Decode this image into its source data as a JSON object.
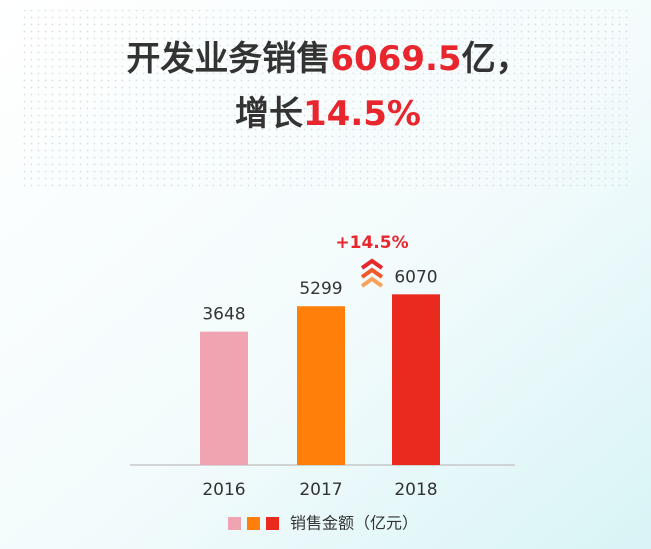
{
  "chart_data": {
    "type": "bar",
    "title": {
      "line1": [
        "开发业务销售",
        "6069.5",
        "亿，"
      ],
      "line2": [
        "增长",
        "14.5%"
      ]
    },
    "highlight_color": "#e8262d",
    "categories": [
      "2016",
      "2017",
      "2018"
    ],
    "series": [
      {
        "name": "销售金额（亿元）",
        "colors": [
          "#f0a3b0",
          "#ff7f0a",
          "#eb2a1f"
        ],
        "values": [
          3648,
          5299,
          6070
        ]
      }
    ],
    "annotation": "+14.5%",
    "ylim": [
      -5000,
      7000
    ]
  }
}
